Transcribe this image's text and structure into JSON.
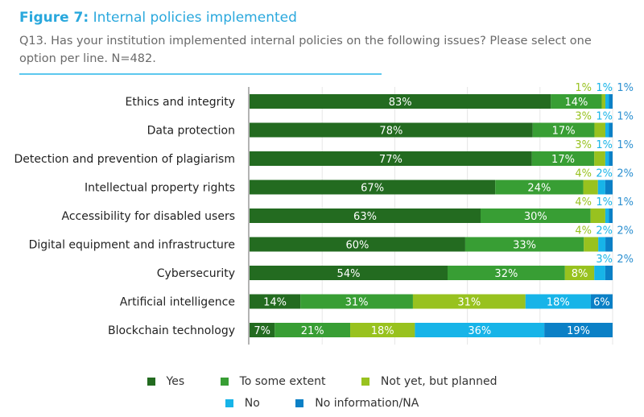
{
  "header": {
    "figure_label": "Figure 7:",
    "title": "Internal policies implemented",
    "subtitle": "Q13. Has your institution implemented internal policies on the following issues? Please select one option per line. N=482."
  },
  "chart_data": {
    "type": "bar",
    "orientation": "horizontal",
    "stacked": true,
    "title": "Figure 7: Internal policies implemented",
    "xlabel": "",
    "ylabel": "",
    "xlim": [
      0,
      100
    ],
    "grid": true,
    "legend_position": "bottom",
    "categories": [
      "Ethics and integrity",
      "Data protection",
      "Detection and prevention of plagiarism",
      "Intellectual property rights",
      "Accessibility for disabled users",
      "Digital equipment and infrastructure",
      "Cybersecurity",
      "Artificial intelligence",
      "Blockchain technology"
    ],
    "series": [
      {
        "name": "Yes",
        "color": "#236b20",
        "values": [
          83,
          78,
          77,
          67,
          63,
          60,
          54,
          14,
          7
        ]
      },
      {
        "name": "To some extent",
        "color": "#389e34",
        "values": [
          14,
          17,
          17,
          24,
          30,
          33,
          32,
          31,
          21
        ]
      },
      {
        "name": "Not yet, but planned",
        "color": "#98c21f",
        "values": [
          1,
          3,
          3,
          4,
          4,
          4,
          8,
          31,
          18
        ]
      },
      {
        "name": "No",
        "color": "#17b4e8",
        "values": [
          1,
          1,
          1,
          2,
          1,
          2,
          3,
          18,
          36
        ]
      },
      {
        "name": "No information/NA",
        "color": "#0b80c6",
        "values": [
          1,
          1,
          1,
          2,
          1,
          2,
          2,
          6,
          19
        ]
      }
    ]
  },
  "legend": [
    {
      "label": "Yes",
      "color": "#236b20"
    },
    {
      "label": "To some extent",
      "color": "#389e34"
    },
    {
      "label": "Not yet, but planned",
      "color": "#98c21f"
    },
    {
      "label": "No",
      "color": "#17b4e8"
    },
    {
      "label": "No information/NA",
      "color": "#0b80c6"
    }
  ]
}
